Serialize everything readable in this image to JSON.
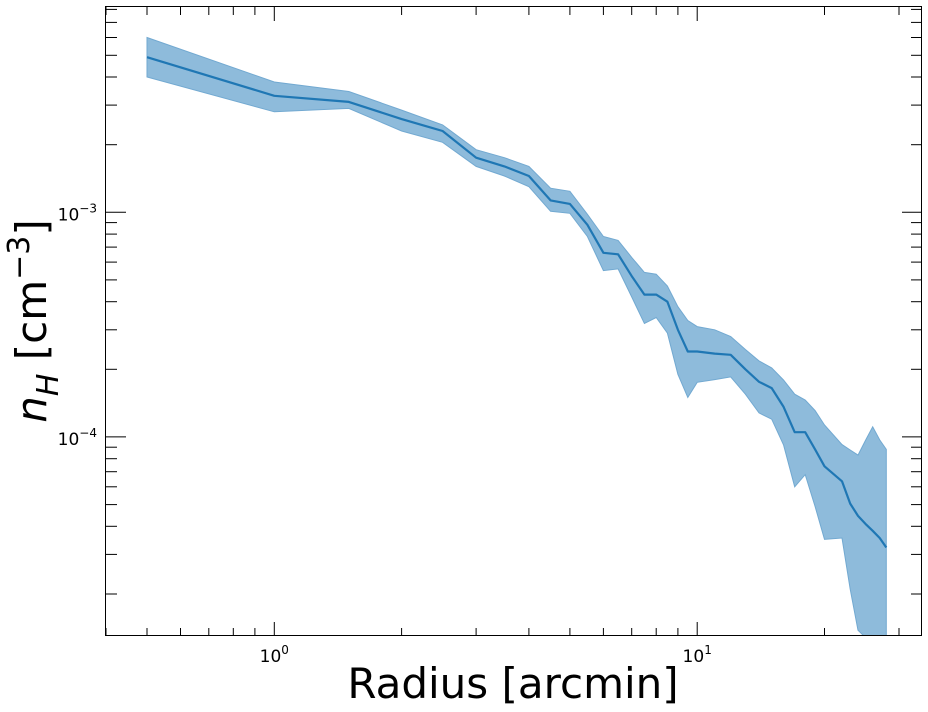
{
  "chart_data": {
    "type": "area",
    "xlabel": "Radius [arcmin]",
    "ylabel": {
      "base": "n",
      "subscript": "H",
      "unit_open": " [cm",
      "unit_sup": "−3",
      "unit_close": "]"
    },
    "xscale": "log",
    "yscale": "log",
    "xlim": [
      0.4,
      34
    ],
    "ylim": [
      1.3e-05,
      0.0082
    ],
    "x_ticks": [
      {
        "value": 1,
        "base": "10",
        "exp": "0"
      },
      {
        "value": 10,
        "base": "10",
        "exp": "1"
      }
    ],
    "y_ticks": [
      {
        "value": 0.001,
        "base": "10",
        "exp": "−3"
      },
      {
        "value": 0.0001,
        "base": "10",
        "exp": "−4"
      }
    ],
    "grid": false,
    "colors": {
      "line": "#1f77b4",
      "band": "#8ebbdb"
    },
    "series": [
      {
        "x": [
          0.5,
          1.0,
          1.5,
          2.0,
          2.5,
          3.0,
          3.5,
          4.0,
          4.5,
          5.0,
          5.5,
          6.0,
          6.5,
          7.0,
          7.5,
          8.0,
          8.5,
          9.0,
          9.5,
          10.0,
          11.0,
          12.0,
          13.0,
          14.0,
          15.0,
          16.0,
          17.0,
          18.0,
          19.0,
          20.0,
          22.0,
          23.0,
          24.0,
          25.0,
          26.0,
          27.0,
          28.0
        ],
        "y": [
          0.0049,
          0.0033,
          0.0031,
          0.0026,
          0.0023,
          0.00175,
          0.0016,
          0.00145,
          0.00113,
          0.00109,
          0.00088,
          0.00066,
          0.00065,
          0.00052,
          0.00043,
          0.00043,
          0.0004,
          0.0003,
          0.00024,
          0.00024,
          0.000235,
          0.000232,
          0.0002,
          0.000176,
          0.000165,
          0.000136,
          0.000105,
          0.000105,
          8.8e-05,
          7.4e-05,
          6.35e-05,
          5.05e-05,
          4.45e-05,
          4.1e-05,
          3.82e-05,
          3.55e-05,
          3.22e-05
        ],
        "y_low": [
          0.004,
          0.0028,
          0.0029,
          0.0023,
          0.00205,
          0.0016,
          0.00145,
          0.0013,
          0.00101,
          0.00099,
          0.00078,
          0.00055,
          0.00056,
          0.00042,
          0.00032,
          0.00034,
          0.00029,
          0.00019,
          0.00015,
          0.000175,
          0.00018,
          0.000185,
          0.000155,
          0.000128,
          0.00012,
          9.2e-05,
          6e-05,
          6.8e-05,
          4.9e-05,
          3.5e-05,
          3.55e-05,
          2.1e-05,
          1.38e-05,
          1.28e-05,
          1.28e-05,
          1.28e-05,
          1.28e-05
        ],
        "y_high": [
          0.006,
          0.0038,
          0.00345,
          0.00285,
          0.00245,
          0.0019,
          0.00175,
          0.0016,
          0.00128,
          0.00124,
          0.00098,
          0.00078,
          0.00075,
          0.00063,
          0.00054,
          0.00053,
          0.00047,
          0.00038,
          0.00033,
          0.00031,
          0.0003,
          0.00028,
          0.000245,
          0.000218,
          0.000203,
          0.000179,
          0.000155,
          0.000146,
          0.000131,
          0.000113,
          9.25e-05,
          8.75e-05,
          8.3e-05,
          9.65e-05,
          0.000111,
          9.7e-05,
          8.8e-05
        ]
      }
    ]
  }
}
